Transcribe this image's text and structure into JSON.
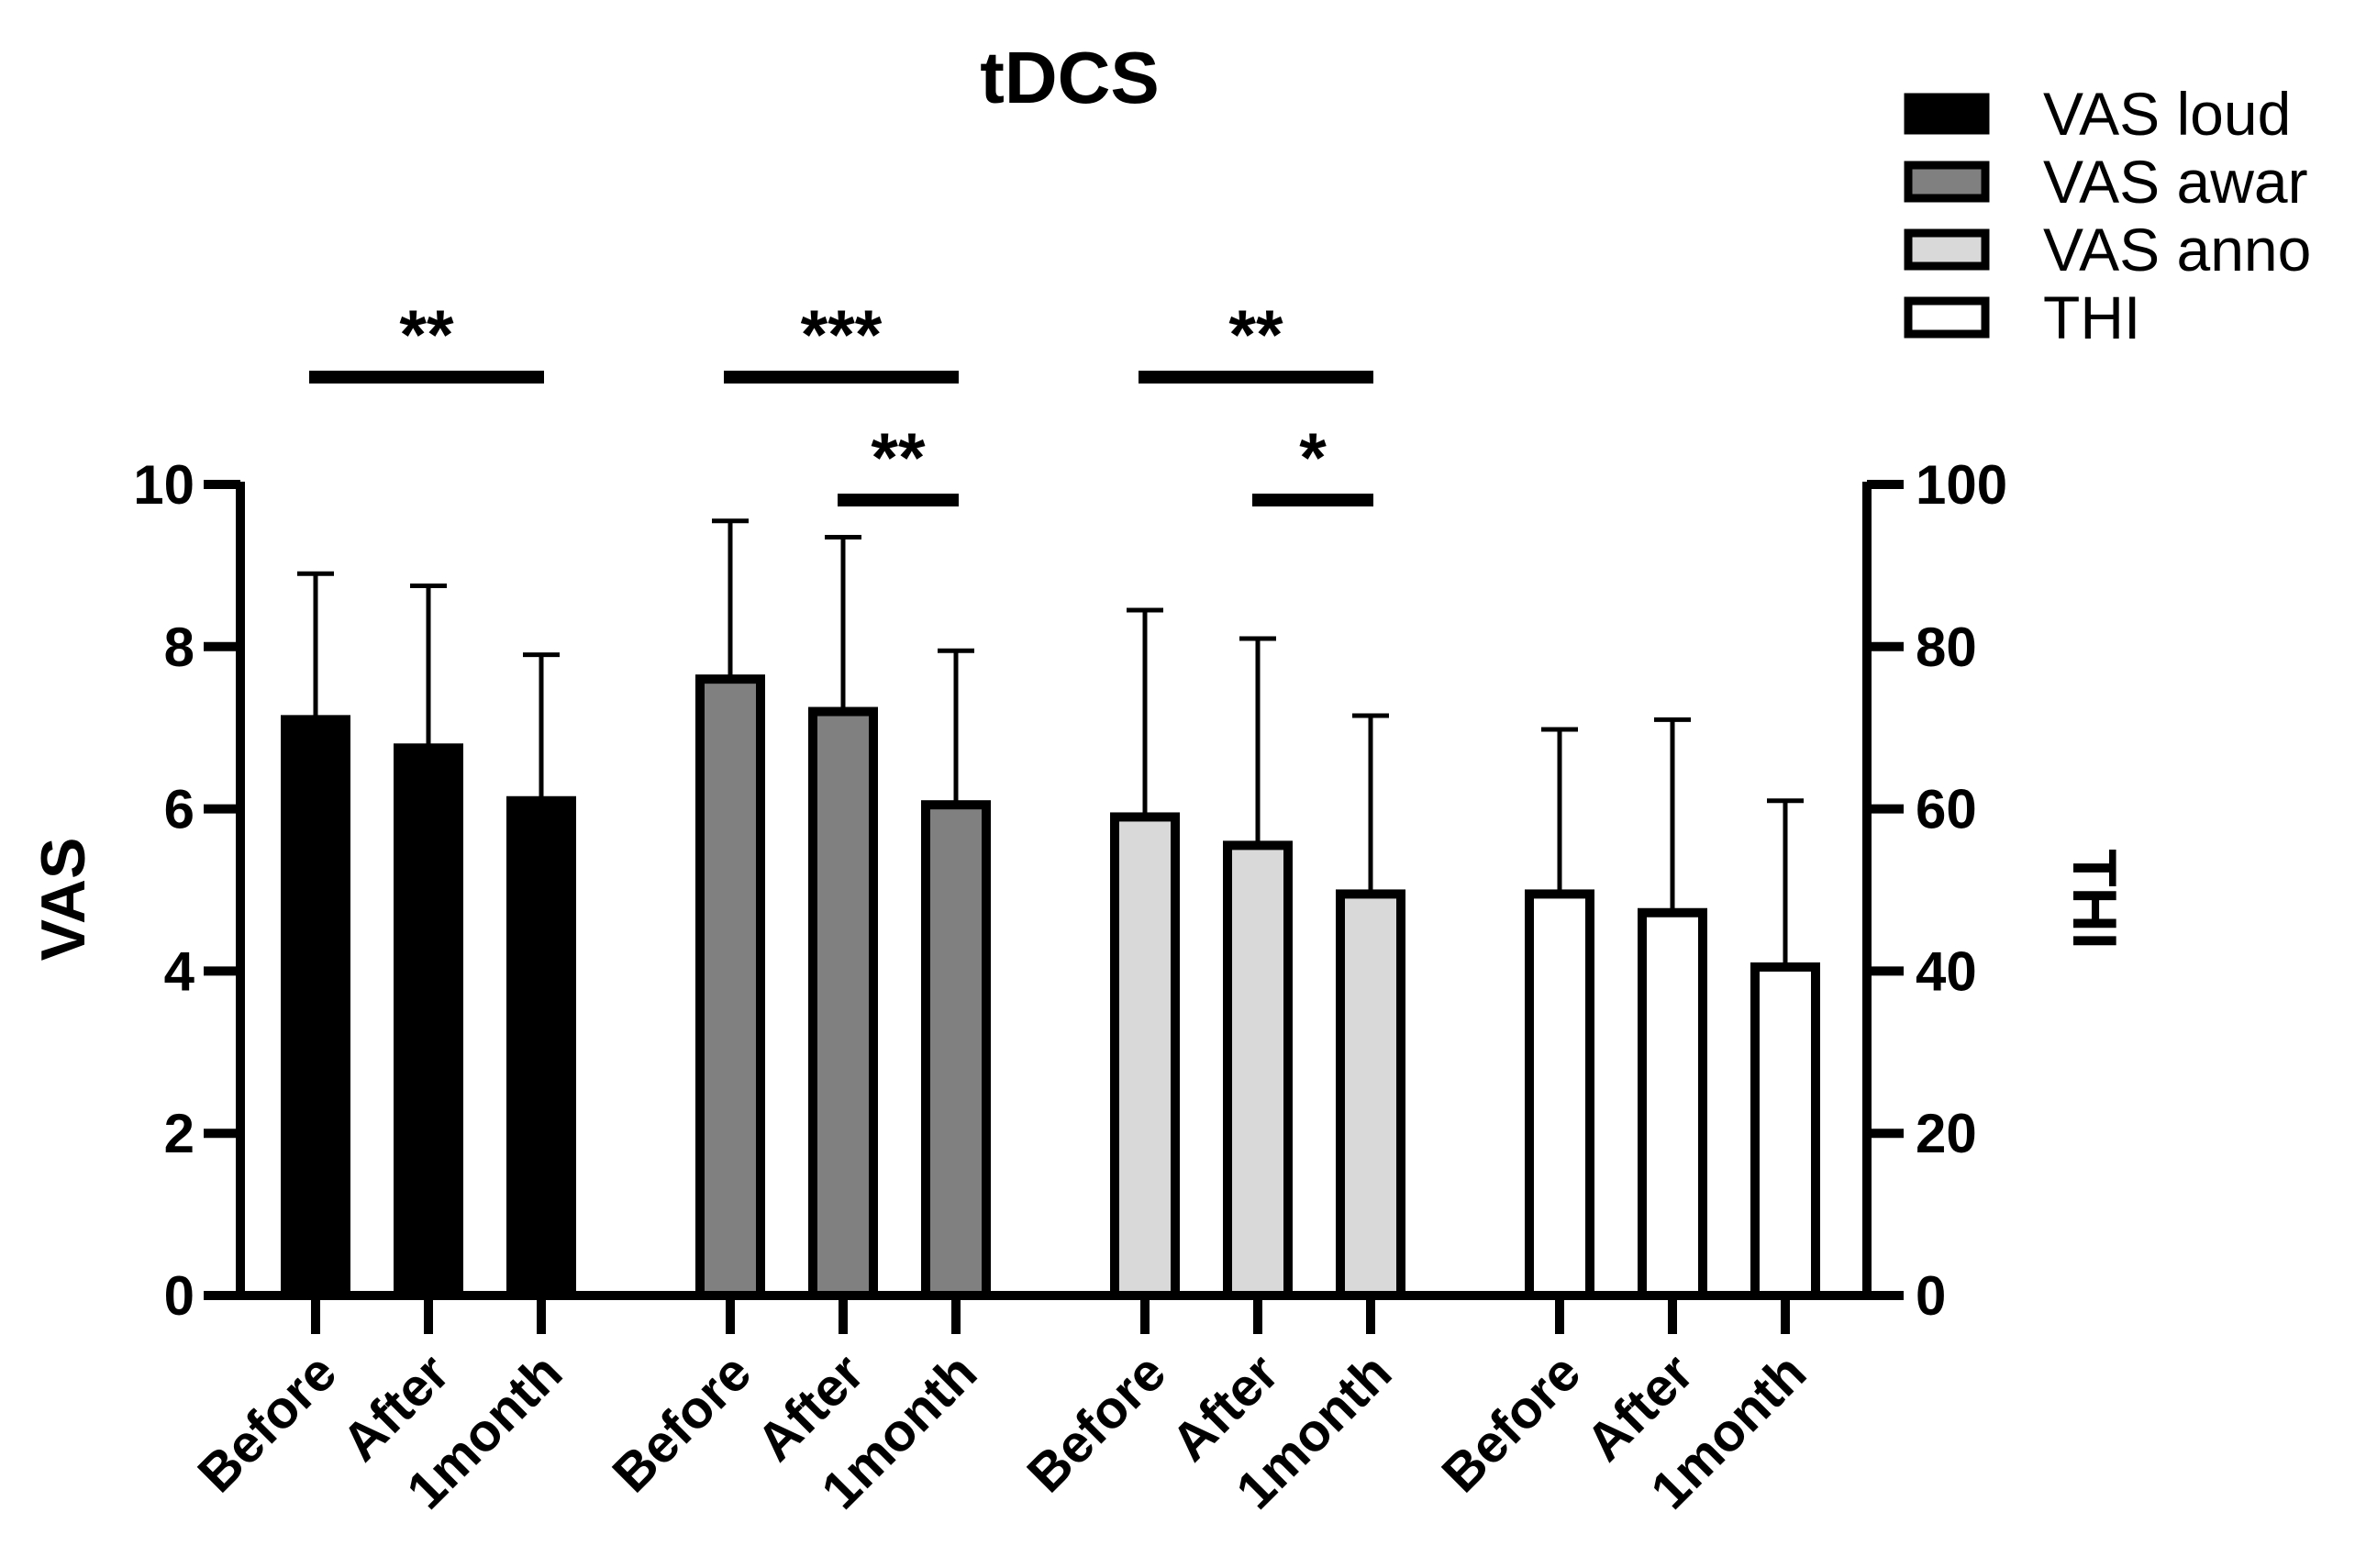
{
  "chart_data": {
    "type": "bar",
    "title": "tDCS",
    "ylabel_left": "VAS",
    "ylabel_right": "THI",
    "ylim_left": [
      0,
      10
    ],
    "ylim_right": [
      0,
      100
    ],
    "yticks_left": [
      "0",
      "2",
      "4",
      "6",
      "8",
      "10"
    ],
    "yticks_right": [
      "0",
      "20",
      "40",
      "60",
      "80",
      "100"
    ],
    "categories": [
      "Before",
      "After",
      "1month"
    ],
    "series": [
      {
        "name": "VAS loud",
        "axis": "left",
        "fill": "#000000",
        "values": [
          7.1,
          6.75,
          6.1
        ],
        "errors": [
          1.8,
          2.0,
          1.8
        ]
      },
      {
        "name": "VAS awar",
        "axis": "left",
        "fill": "#808080",
        "values": [
          7.6,
          7.2,
          6.05
        ],
        "errors": [
          1.95,
          2.15,
          1.9
        ]
      },
      {
        "name": "VAS anno",
        "axis": "left",
        "fill": "#d9d9d9",
        "values": [
          5.9,
          5.55,
          4.95
        ],
        "errors": [
          2.55,
          2.55,
          2.2
        ]
      },
      {
        "name": "THI",
        "axis": "right",
        "fill": "#ffffff",
        "values": [
          49.5,
          47.2,
          40.5
        ],
        "errors": [
          20.3,
          23.8,
          20.5
        ]
      }
    ],
    "significance": [
      {
        "group": 0,
        "from": 0,
        "to": 2,
        "label": "**"
      },
      {
        "group": 1,
        "from": 0,
        "to": 2,
        "label": "***"
      },
      {
        "group": 1,
        "from": 1,
        "to": 2,
        "label": "**"
      },
      {
        "group": 2,
        "from": 0,
        "to": 2,
        "label": "**"
      },
      {
        "group": 2,
        "from": 1,
        "to": 2,
        "label": "*"
      }
    ]
  }
}
